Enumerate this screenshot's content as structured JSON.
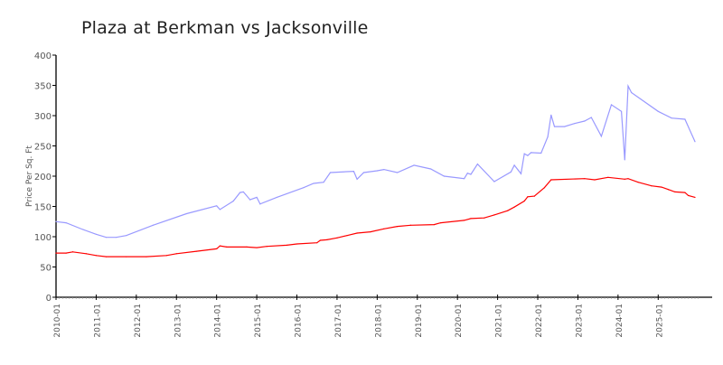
{
  "chart_data": {
    "type": "line",
    "title": "Plaza at Berkman vs Jacksonville",
    "xlabel": "",
    "ylabel": "Price Per Sq. Ft",
    "ylim": [
      0,
      400
    ],
    "yticks": [
      0,
      50,
      100,
      150,
      200,
      250,
      300,
      350,
      400
    ],
    "xlim": [
      "2010-01",
      "2025-12"
    ],
    "xticks": [
      "2010-01",
      "2011-01",
      "2012-01",
      "2013-01",
      "2014-01",
      "2015-01",
      "2016-01",
      "2017-01",
      "2018-01",
      "2019-01",
      "2020-01",
      "2021-01",
      "2022-01",
      "2023-01",
      "2024-01",
      "2025-01"
    ],
    "grid": false,
    "legend": "none",
    "series": [
      {
        "color": "#9999ff",
        "points": [
          [
            "2010-01",
            125
          ],
          [
            "2010-04",
            123
          ],
          [
            "2010-09",
            112
          ],
          [
            "2011-01",
            104
          ],
          [
            "2011-04",
            99
          ],
          [
            "2011-07",
            99
          ],
          [
            "2011-10",
            102
          ],
          [
            "2012-06",
            119
          ],
          [
            "2013-04",
            138
          ],
          [
            "2014-01",
            151
          ],
          [
            "2014-02",
            145
          ],
          [
            "2014-06",
            159
          ],
          [
            "2014-08",
            173
          ],
          [
            "2014-09",
            174
          ],
          [
            "2014-11",
            161
          ],
          [
            "2015-01",
            165
          ],
          [
            "2015-02",
            154
          ],
          [
            "2015-07",
            165
          ],
          [
            "2016-03",
            181
          ],
          [
            "2016-06",
            188
          ],
          [
            "2016-09",
            190
          ],
          [
            "2016-11",
            206
          ],
          [
            "2017-06",
            208
          ],
          [
            "2017-07",
            195
          ],
          [
            "2017-09",
            206
          ],
          [
            "2018-01",
            209
          ],
          [
            "2018-03",
            211
          ],
          [
            "2018-07",
            206
          ],
          [
            "2018-12",
            218
          ],
          [
            "2019-05",
            212
          ],
          [
            "2019-09",
            200
          ],
          [
            "2020-03",
            196
          ],
          [
            "2020-04",
            205
          ],
          [
            "2020-05",
            203
          ],
          [
            "2020-07",
            220
          ],
          [
            "2020-12",
            191
          ],
          [
            "2021-05",
            207
          ],
          [
            "2021-06",
            218
          ],
          [
            "2021-08",
            204
          ],
          [
            "2021-09",
            237
          ],
          [
            "2021-10",
            234
          ],
          [
            "2021-11",
            239
          ],
          [
            "2022-02",
            238
          ],
          [
            "2022-04",
            265
          ],
          [
            "2022-05",
            301
          ],
          [
            "2022-06",
            282
          ],
          [
            "2022-09",
            282
          ],
          [
            "2022-12",
            287
          ],
          [
            "2023-03",
            291
          ],
          [
            "2023-05",
            297
          ],
          [
            "2023-08",
            266
          ],
          [
            "2023-11",
            318
          ],
          [
            "2024-02",
            307
          ],
          [
            "2024-03",
            227
          ],
          [
            "2024-04",
            349
          ],
          [
            "2024-05",
            338
          ],
          [
            "2025-01",
            307
          ],
          [
            "2025-05",
            296
          ],
          [
            "2025-09",
            294
          ],
          [
            "2025-12",
            257
          ]
        ]
      },
      {
        "color": "#ff0000",
        "points": [
          [
            "2010-01",
            73
          ],
          [
            "2010-04",
            73
          ],
          [
            "2010-06",
            75
          ],
          [
            "2010-10",
            72
          ],
          [
            "2011-01",
            69
          ],
          [
            "2011-04",
            67
          ],
          [
            "2011-10",
            67
          ],
          [
            "2012-04",
            67
          ],
          [
            "2012-10",
            69
          ],
          [
            "2013-01",
            72
          ],
          [
            "2013-07",
            76
          ],
          [
            "2014-01",
            80
          ],
          [
            "2014-02",
            85
          ],
          [
            "2014-04",
            83
          ],
          [
            "2014-10",
            83
          ],
          [
            "2015-01",
            82
          ],
          [
            "2015-04",
            84
          ],
          [
            "2015-10",
            86
          ],
          [
            "2016-01",
            88
          ],
          [
            "2016-07",
            90
          ],
          [
            "2016-08",
            94
          ],
          [
            "2016-10",
            95
          ],
          [
            "2017-01",
            98
          ],
          [
            "2017-04",
            102
          ],
          [
            "2017-07",
            106
          ],
          [
            "2017-11",
            108
          ],
          [
            "2018-03",
            113
          ],
          [
            "2018-07",
            117
          ],
          [
            "2018-11",
            119
          ],
          [
            "2019-06",
            120
          ],
          [
            "2019-08",
            123
          ],
          [
            "2020-03",
            127
          ],
          [
            "2020-05",
            130
          ],
          [
            "2020-09",
            131
          ],
          [
            "2020-12",
            136
          ],
          [
            "2021-04",
            143
          ],
          [
            "2021-06",
            149
          ],
          [
            "2021-09",
            159
          ],
          [
            "2021-10",
            166
          ],
          [
            "2021-12",
            167
          ],
          [
            "2022-03",
            181
          ],
          [
            "2022-05",
            194
          ],
          [
            "2023-03",
            196
          ],
          [
            "2023-06",
            194
          ],
          [
            "2023-10",
            198
          ],
          [
            "2024-03",
            195
          ],
          [
            "2024-04",
            196
          ],
          [
            "2024-07",
            190
          ],
          [
            "2024-11",
            184
          ],
          [
            "2025-02",
            182
          ],
          [
            "2025-04",
            178
          ],
          [
            "2025-06",
            174
          ],
          [
            "2025-09",
            173
          ],
          [
            "2025-10",
            168
          ],
          [
            "2025-12",
            165
          ]
        ]
      }
    ]
  }
}
